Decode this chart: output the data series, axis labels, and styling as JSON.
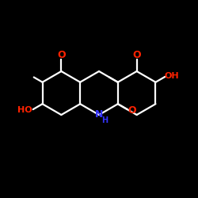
{
  "bg_color": "#000000",
  "o_color": "#ff2200",
  "n_color": "#3333ff",
  "bond_color": "#ffffff",
  "bond_lw": 1.6,
  "figsize": [
    2.5,
    2.5
  ],
  "dpi": 100,
  "xlim": [
    0,
    10
  ],
  "ylim": [
    0,
    10
  ]
}
